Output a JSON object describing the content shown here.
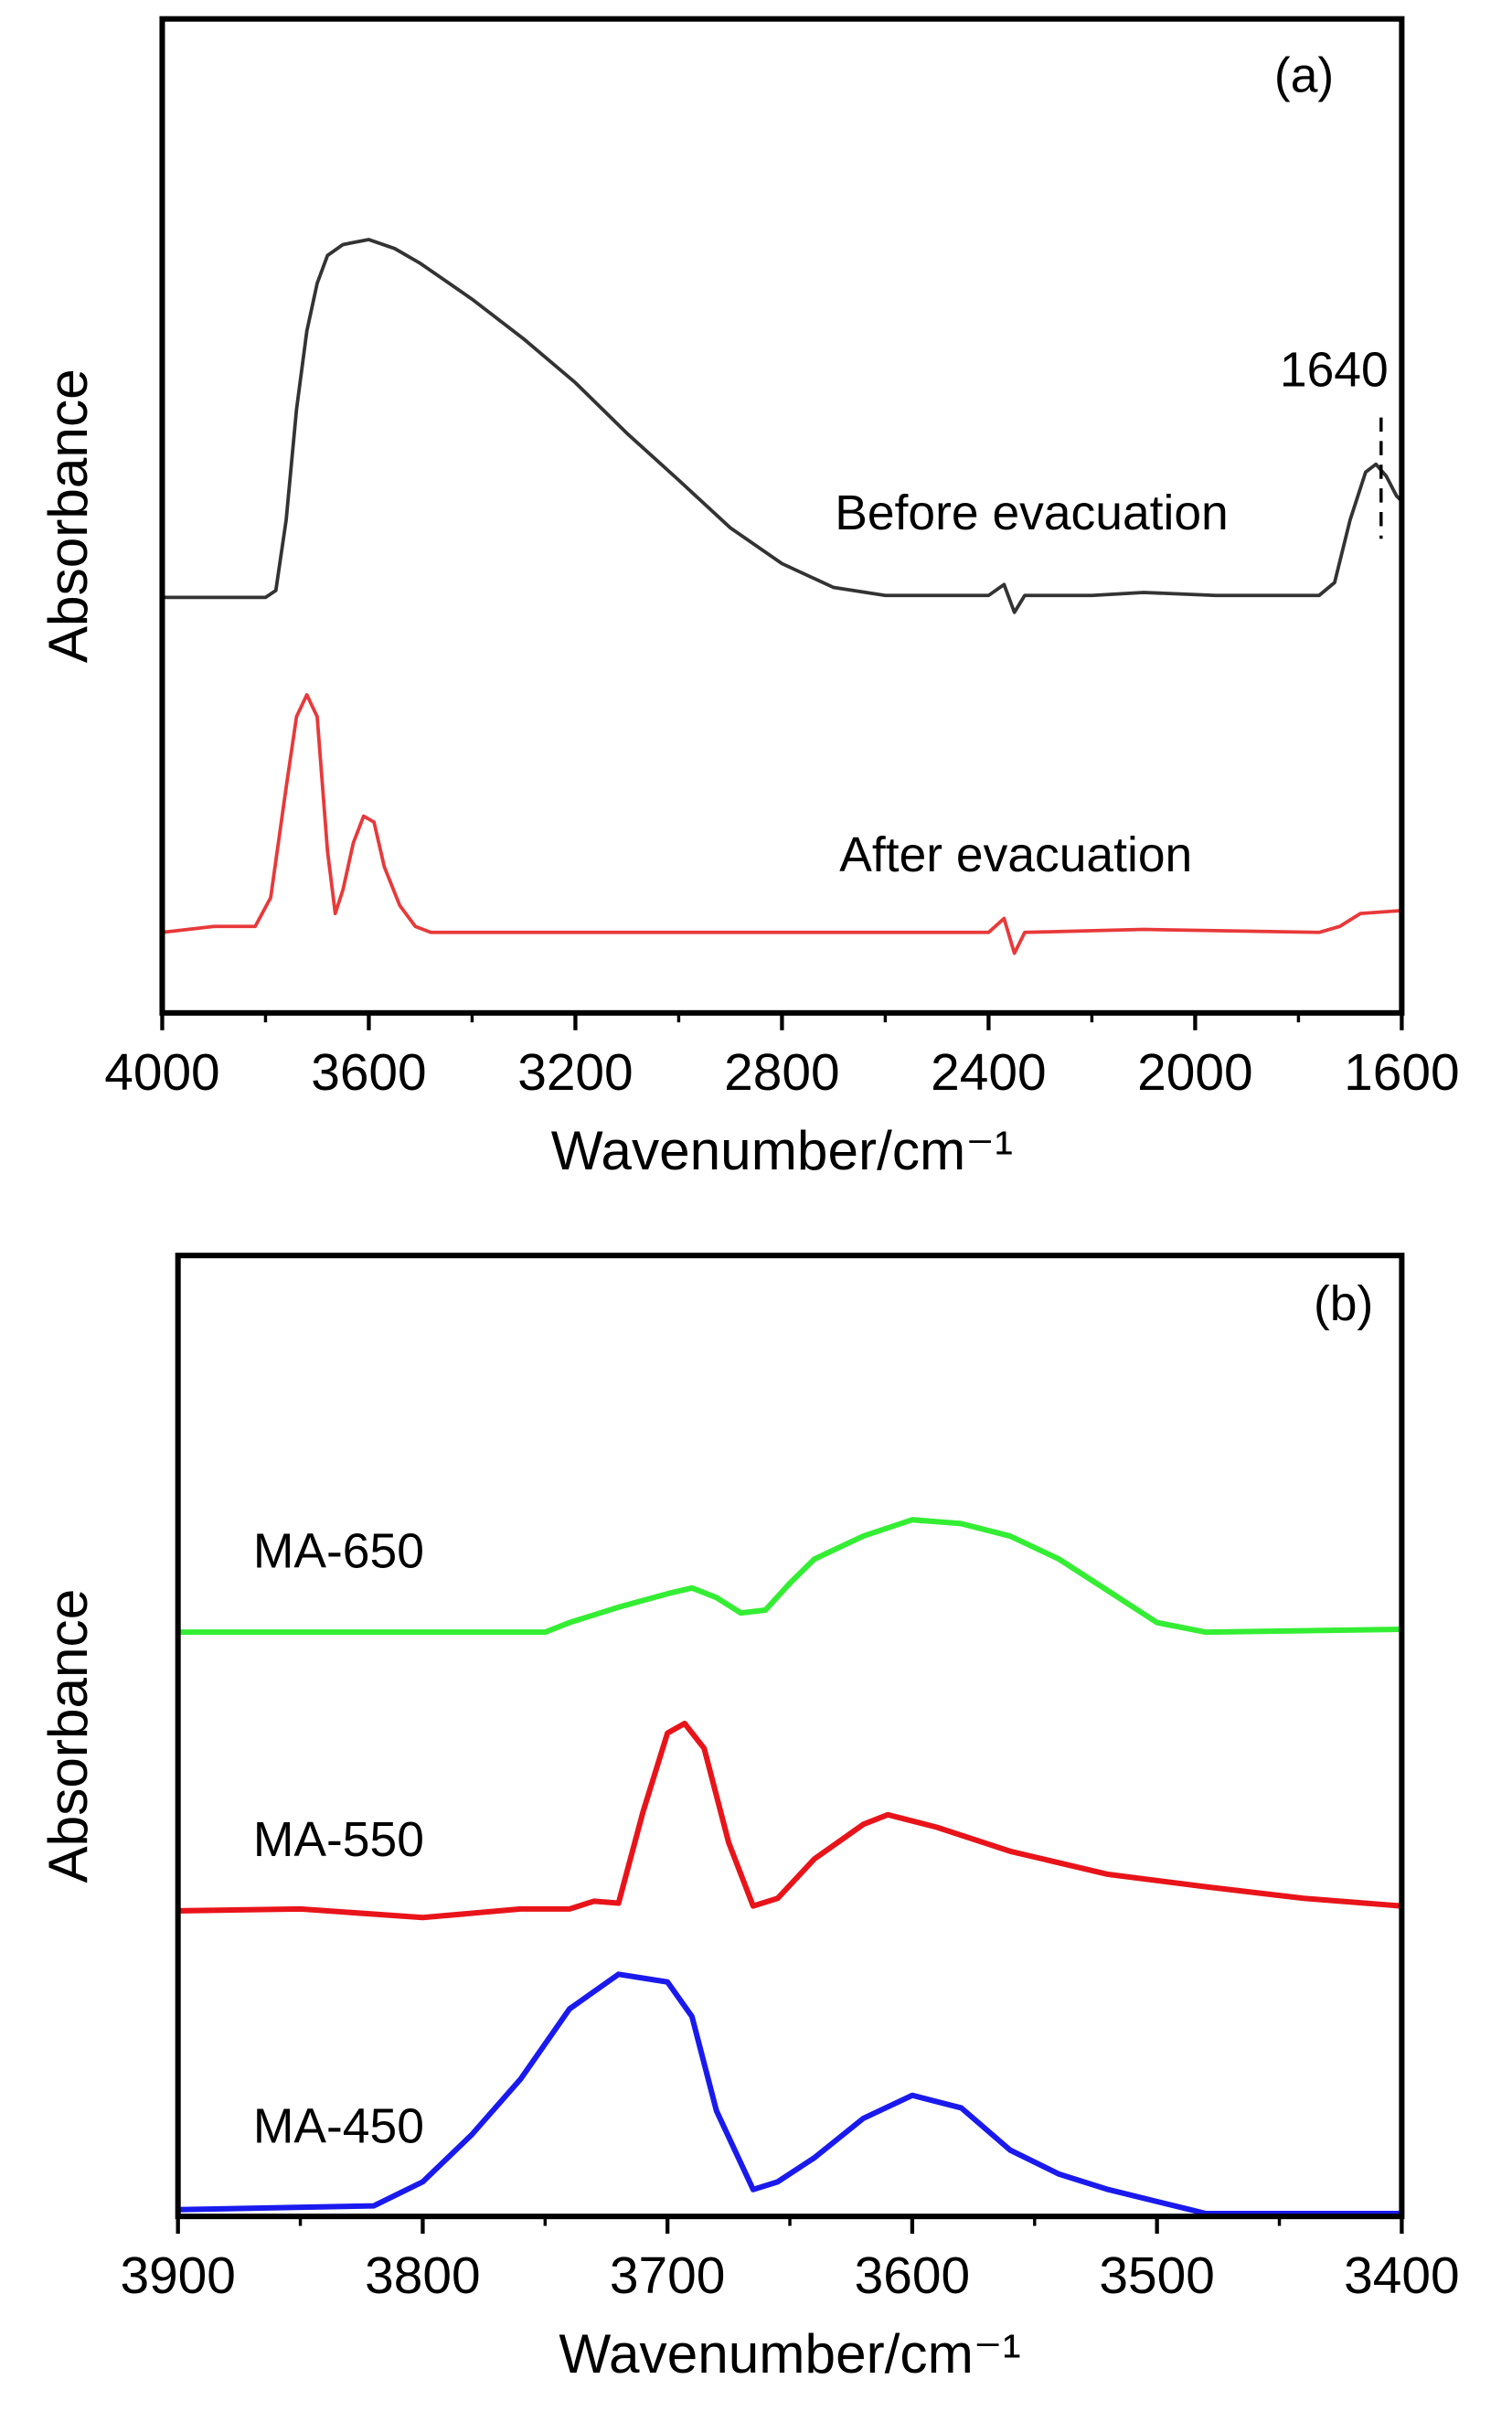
{
  "chart_data": [
    {
      "type": "line",
      "panel_label": "(a)",
      "x_label": "Wavenumber/cm⁻¹",
      "y_label": "Absorbance",
      "xlim": [
        4000,
        1600
      ],
      "xticks": [
        4000,
        3600,
        3200,
        2800,
        2400,
        2000,
        1600
      ],
      "ylim": [
        0,
        1
      ],
      "annotations": [
        {
          "text": "1640",
          "x": 1640
        },
        {
          "text": "Before evacuation"
        },
        {
          "text": "After evacuation"
        }
      ],
      "series": [
        {
          "name": "Before evacuation",
          "color": "#333333",
          "x": [
            4000,
            3800,
            3780,
            3760,
            3740,
            3720,
            3700,
            3680,
            3650,
            3600,
            3550,
            3500,
            3400,
            3300,
            3200,
            3100,
            3000,
            2900,
            2800,
            2700,
            2600,
            2400,
            2370,
            2350,
            2330,
            2200,
            2100,
            1960,
            1760,
            1730,
            1700,
            1670,
            1650,
            1630,
            1610,
            1600
          ],
          "values": [
            0.418,
            0.418,
            0.425,
            0.496,
            0.607,
            0.686,
            0.734,
            0.762,
            0.773,
            0.778,
            0.769,
            0.754,
            0.718,
            0.678,
            0.634,
            0.583,
            0.536,
            0.488,
            0.452,
            0.428,
            0.42,
            0.42,
            0.431,
            0.403,
            0.42,
            0.42,
            0.423,
            0.42,
            0.42,
            0.433,
            0.496,
            0.544,
            0.552,
            0.54,
            0.52,
            0.515
          ]
        },
        {
          "name": "After evacuation",
          "color": "#e8393a",
          "x": [
            4000,
            3900,
            3820,
            3790,
            3760,
            3740,
            3720,
            3700,
            3680,
            3665,
            3650,
            3630,
            3610,
            3590,
            3570,
            3540,
            3510,
            3480,
            2800,
            2400,
            2370,
            2350,
            2330,
            2100,
            1760,
            1720,
            1680,
            1600
          ],
          "values": [
            0.081,
            0.087,
            0.087,
            0.116,
            0.227,
            0.298,
            0.32,
            0.298,
            0.163,
            0.1,
            0.124,
            0.171,
            0.198,
            0.192,
            0.147,
            0.108,
            0.087,
            0.081,
            0.081,
            0.081,
            0.095,
            0.06,
            0.081,
            0.084,
            0.081,
            0.087,
            0.1,
            0.103
          ]
        }
      ]
    },
    {
      "type": "line",
      "panel_label": "(b)",
      "x_label": "Wavenumber/cm⁻¹",
      "y_label": "Absorbance",
      "xlim": [
        3900,
        3400
      ],
      "xticks": [
        3900,
        3800,
        3700,
        3600,
        3500,
        3400
      ],
      "ylim": [
        0,
        1
      ],
      "series": [
        {
          "name": "MA-650",
          "color": "#33ee33",
          "x": [
            3900,
            3800,
            3750,
            3740,
            3720,
            3700,
            3690,
            3680,
            3670,
            3660,
            3650,
            3640,
            3620,
            3600,
            3580,
            3560,
            3540,
            3520,
            3500,
            3480,
            3400
          ],
          "values": [
            0.608,
            0.608,
            0.608,
            0.618,
            0.634,
            0.648,
            0.654,
            0.644,
            0.628,
            0.631,
            0.659,
            0.684,
            0.708,
            0.725,
            0.721,
            0.708,
            0.684,
            0.651,
            0.618,
            0.608,
            0.611
          ]
        },
        {
          "name": "MA-550",
          "color": "#e8141a",
          "x": [
            3900,
            3850,
            3800,
            3760,
            3740,
            3730,
            3720,
            3710,
            3700,
            3693,
            3685,
            3675,
            3665,
            3655,
            3640,
            3620,
            3610,
            3590,
            3560,
            3520,
            3480,
            3440,
            3400
          ],
          "values": [
            0.318,
            0.32,
            0.311,
            0.32,
            0.32,
            0.328,
            0.326,
            0.421,
            0.503,
            0.513,
            0.487,
            0.389,
            0.323,
            0.331,
            0.372,
            0.408,
            0.418,
            0.405,
            0.38,
            0.356,
            0.343,
            0.331,
            0.323
          ]
        },
        {
          "name": "MA-450",
          "color": "#1a1aee",
          "x": [
            3900,
            3820,
            3800,
            3780,
            3760,
            3740,
            3720,
            3700,
            3690,
            3680,
            3665,
            3655,
            3640,
            3620,
            3600,
            3580,
            3560,
            3540,
            3520,
            3480,
            3400
          ],
          "values": [
            0.007,
            0.011,
            0.036,
            0.085,
            0.143,
            0.216,
            0.252,
            0.244,
            0.208,
            0.11,
            0.028,
            0.036,
            0.061,
            0.102,
            0.126,
            0.113,
            0.069,
            0.044,
            0.028,
            0.003,
            0.003
          ]
        }
      ]
    }
  ]
}
